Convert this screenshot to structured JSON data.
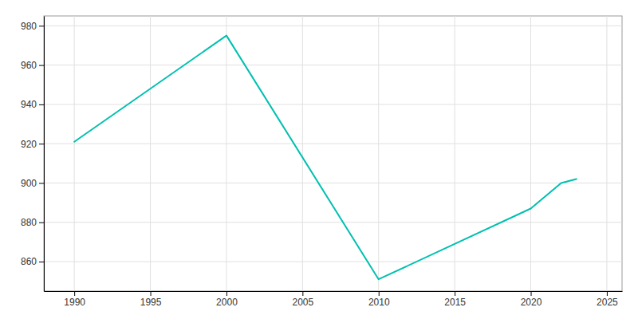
{
  "chart_data": {
    "type": "line",
    "x": [
      1990,
      2000,
      2010,
      2020,
      2022,
      2023
    ],
    "values": [
      921,
      975,
      851,
      887,
      900,
      902
    ],
    "color": "#00c0b0",
    "xlim": [
      1988,
      2026
    ],
    "ylim": [
      845,
      985
    ],
    "xticks": [
      1990,
      1995,
      2000,
      2005,
      2010,
      2015,
      2020,
      2025
    ],
    "yticks": [
      860,
      880,
      900,
      920,
      940,
      960,
      980
    ],
    "grid": true
  }
}
